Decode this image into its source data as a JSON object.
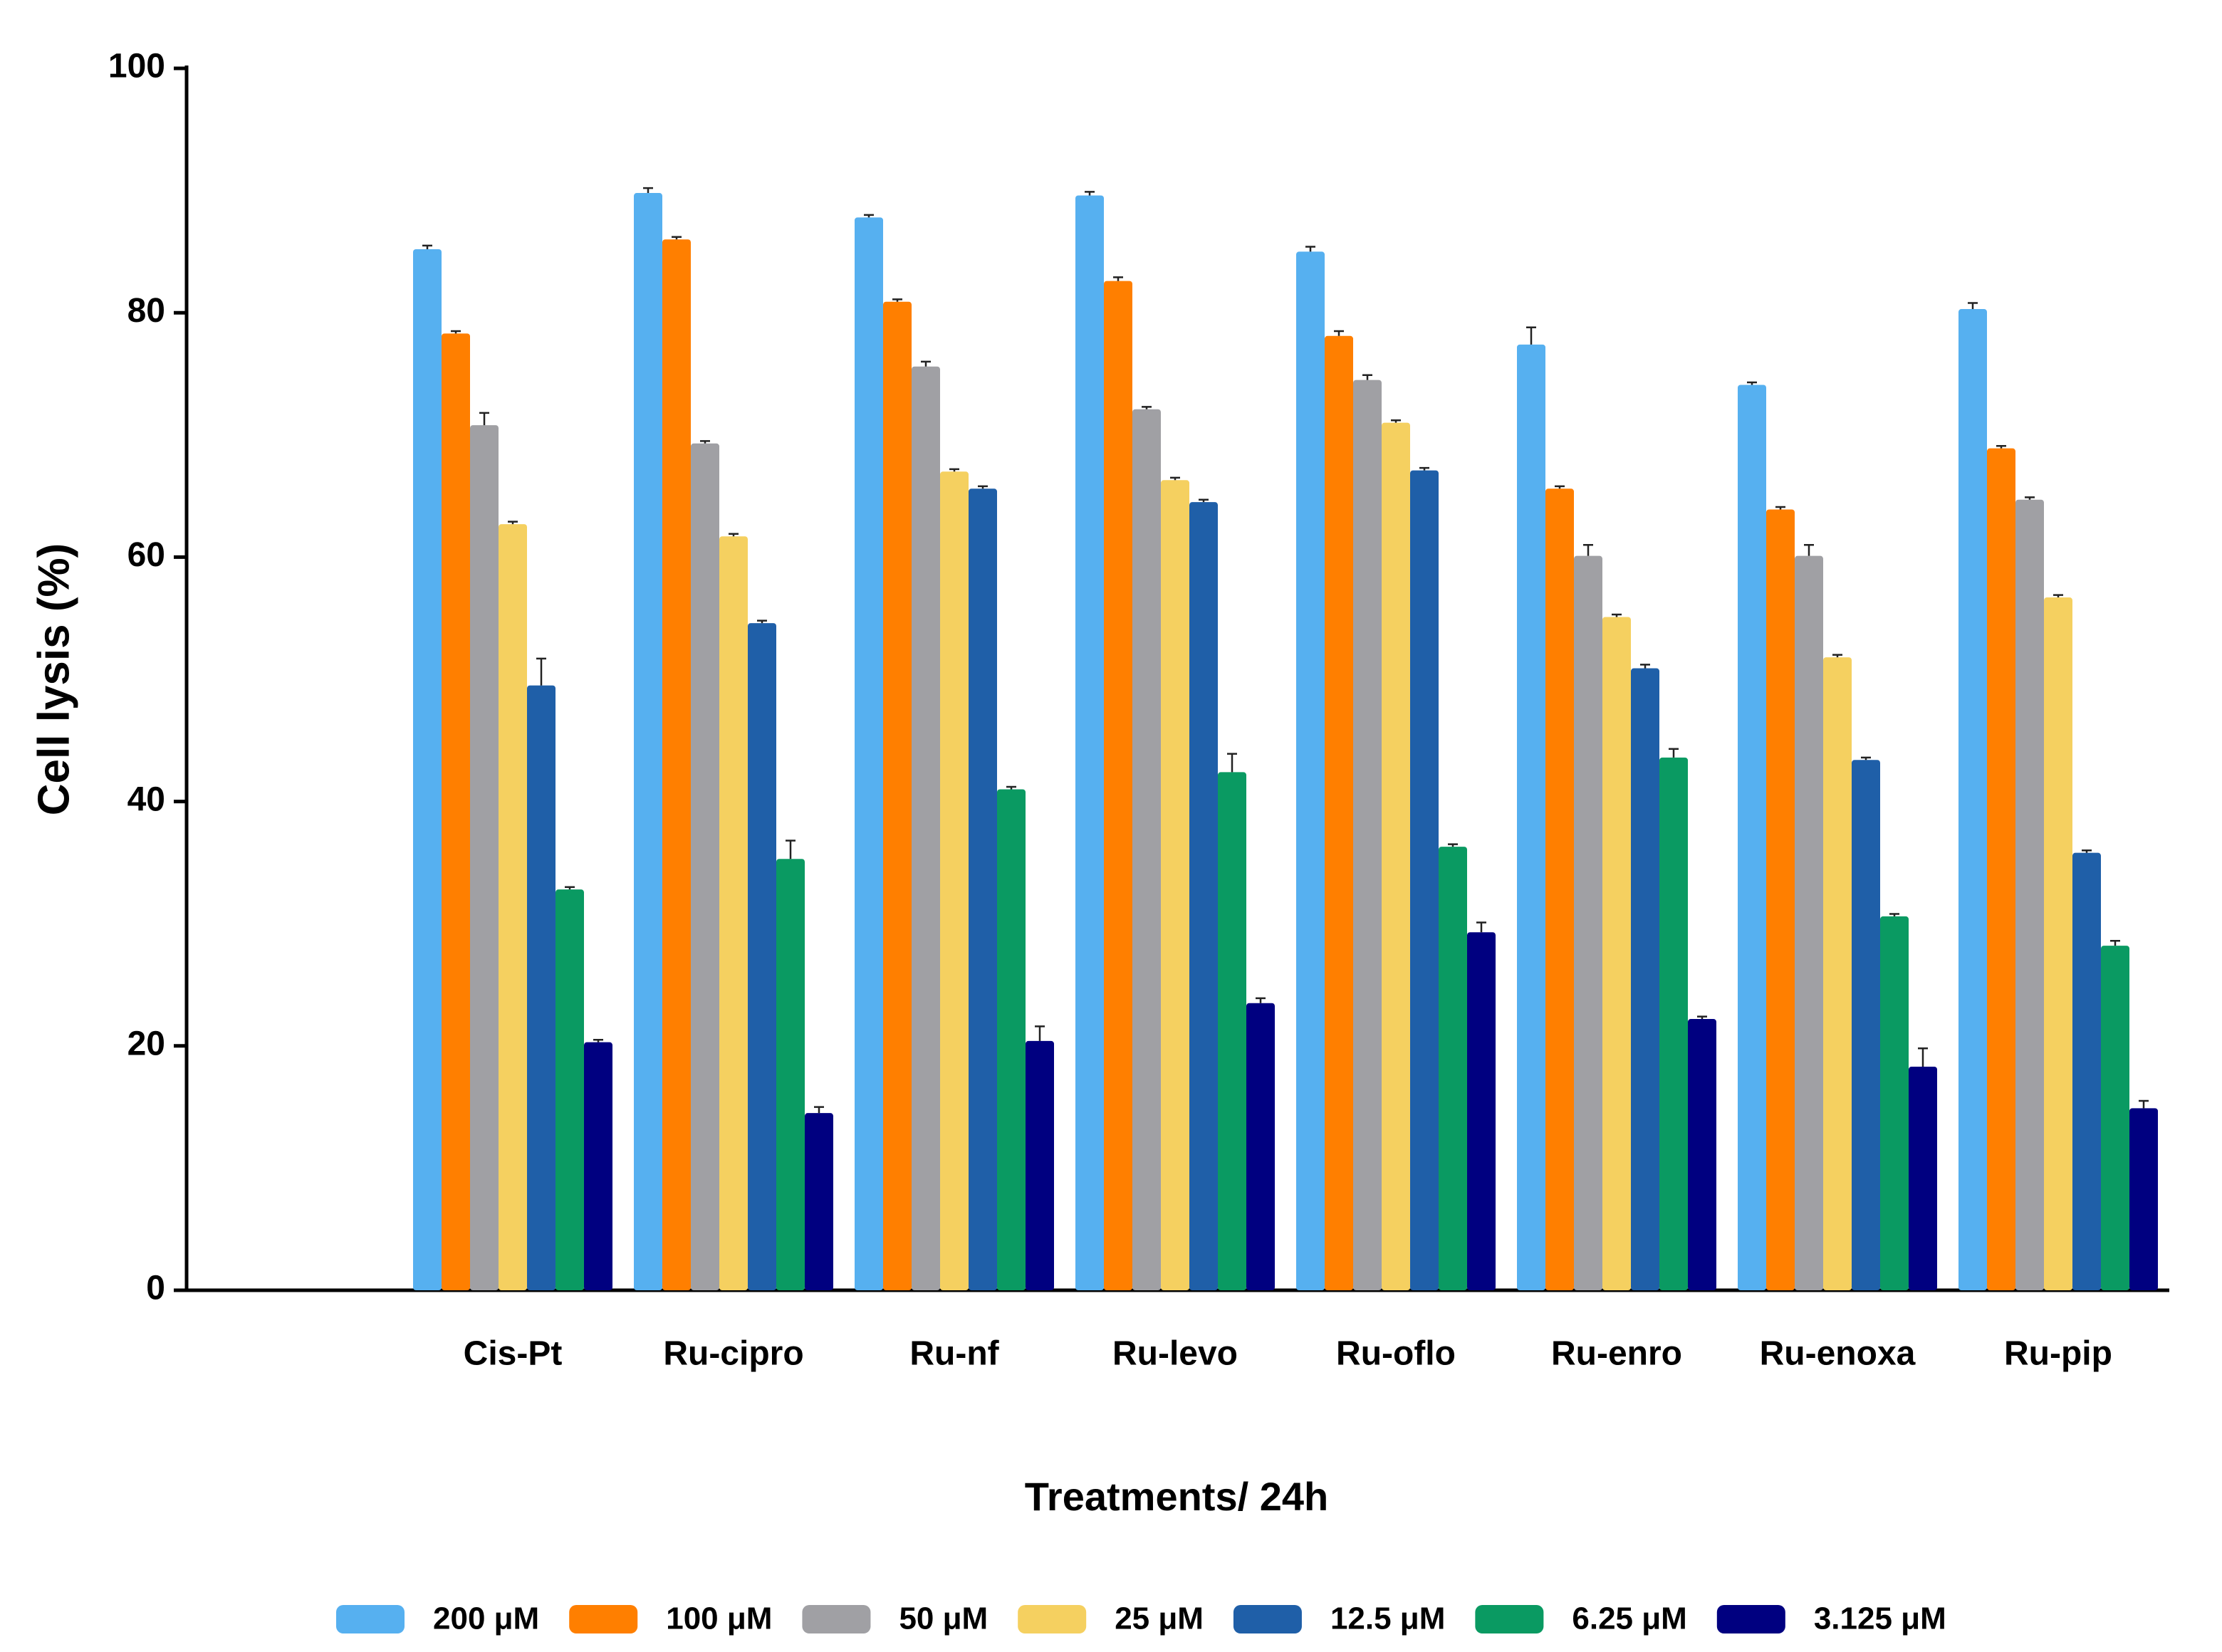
{
  "chart_data": {
    "type": "bar",
    "y_label": "Cell lysis (%)",
    "x_label": "Treatments/ 24h",
    "categories": [
      "Cis-Pt",
      "Ru-cipro",
      "Ru-nf",
      "Ru-levo",
      "Ru-oflo",
      "Ru-enro",
      "Ru-enoxa",
      "Ru-pip"
    ],
    "ylim": [
      0,
      100
    ],
    "yticks": [
      0,
      20,
      40,
      60,
      80,
      100
    ],
    "series": [
      {
        "name": "200 μM",
        "color": "#56b0f0",
        "values": [
          85.2,
          89.8,
          87.8,
          89.6,
          85.0,
          77.4,
          74.1,
          80.3
        ],
        "errors": [
          0.3,
          0.4,
          0.2,
          0.3,
          0.4,
          1.4,
          0.2,
          0.5
        ]
      },
      {
        "name": "100 μM",
        "color": "#ff7f00",
        "values": [
          78.3,
          86.0,
          80.9,
          82.6,
          78.1,
          65.6,
          63.9,
          68.9
        ],
        "errors": [
          0.2,
          0.2,
          0.2,
          0.3,
          0.4,
          0.2,
          0.2,
          0.2
        ]
      },
      {
        "name": "50 μM",
        "color": "#a0a0a4",
        "values": [
          70.8,
          69.3,
          75.6,
          72.1,
          74.5,
          60.1,
          60.1,
          64.7
        ],
        "errors": [
          1.0,
          0.2,
          0.4,
          0.2,
          0.4,
          0.9,
          0.9,
          0.2
        ]
      },
      {
        "name": "25 μM",
        "color": "#f5d060",
        "values": [
          62.7,
          61.7,
          67.0,
          66.3,
          71.0,
          55.1,
          51.8,
          56.7
        ],
        "errors": [
          0.2,
          0.2,
          0.2,
          0.2,
          0.2,
          0.2,
          0.2,
          0.2
        ]
      },
      {
        "name": "12.5 μM",
        "color": "#1f5fa8",
        "values": [
          49.5,
          54.6,
          65.6,
          64.5,
          67.1,
          50.9,
          43.4,
          35.8
        ],
        "errors": [
          2.2,
          0.2,
          0.2,
          0.2,
          0.2,
          0.3,
          0.2,
          0.2
        ]
      },
      {
        "name": "6.25 μM",
        "color": "#0a9a62",
        "values": [
          32.8,
          35.3,
          41.0,
          42.4,
          36.3,
          43.6,
          30.6,
          28.2
        ],
        "errors": [
          0.2,
          1.5,
          0.2,
          1.5,
          0.2,
          0.7,
          0.2,
          0.4
        ]
      },
      {
        "name": "3.125 μM",
        "color": "#000080",
        "values": [
          20.3,
          14.5,
          20.4,
          23.5,
          29.3,
          22.2,
          18.3,
          14.9
        ],
        "errors": [
          0.2,
          0.5,
          1.2,
          0.4,
          0.8,
          0.2,
          1.5,
          0.6
        ]
      }
    ]
  }
}
